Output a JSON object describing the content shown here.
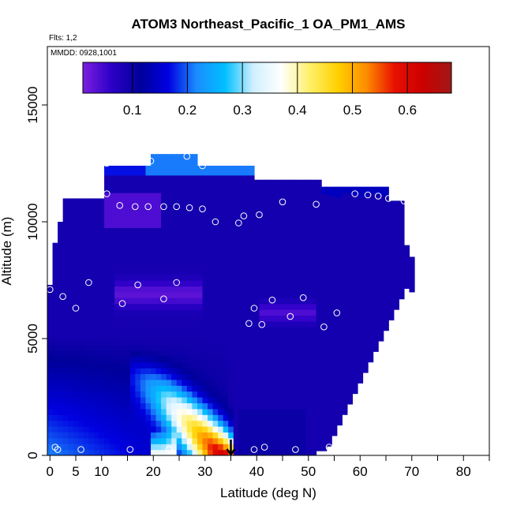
{
  "chart_data": {
    "type": "heatmap",
    "title": "ATOM3 Northeast_Pacific_1 OA_PM1_AMS",
    "annotations": {
      "flights": "Flts: 1,2",
      "dates": "MMDD: 0928,1001"
    },
    "xlabel": "Latitude (deg N)",
    "ylabel": "Altitude (m)",
    "xlim": [
      -0.5,
      85
    ],
    "ylim": [
      0,
      17500
    ],
    "x_ticks": [
      0,
      5,
      10,
      20,
      30,
      40,
      50,
      60,
      70,
      80
    ],
    "y_ticks": [
      0,
      5000,
      10000,
      15000
    ],
    "colorbar": {
      "range": [
        0.01,
        0.68
      ],
      "ticks": [
        "0.1",
        "0.2",
        "0.3",
        "0.4",
        "0.5",
        "0.6"
      ],
      "tick_values": [
        0.1,
        0.2,
        0.3,
        0.4,
        0.5,
        0.6
      ],
      "colors": [
        "#7b1fe0",
        "#2d00c8",
        "#00009a",
        "#0000e0",
        "#1a8cff",
        "#00bfff",
        "#cfefff",
        "#ffffff",
        "#fff06a",
        "#ffd000",
        "#ff8c00",
        "#e81000",
        "#cc0000",
        "#a01818"
      ]
    },
    "arrow_marker_lat": 35,
    "observations": [
      {
        "lat": 0,
        "alt": 7100
      },
      {
        "lat": 1,
        "alt": 350
      },
      {
        "lat": 1.5,
        "alt": 250
      },
      {
        "lat": 2.5,
        "alt": 6800
      },
      {
        "lat": 2.5,
        "alt": 11900
      },
      {
        "lat": 4,
        "alt": 11300
      },
      {
        "lat": 5,
        "alt": 6300
      },
      {
        "lat": 6,
        "alt": 11350
      },
      {
        "lat": 6,
        "alt": 250
      },
      {
        "lat": 7.5,
        "alt": 7400
      },
      {
        "lat": 9,
        "alt": 11350
      },
      {
        "lat": 11,
        "alt": 11200
      },
      {
        "lat": 11,
        "alt": 12500
      },
      {
        "lat": 13.5,
        "alt": 10700
      },
      {
        "lat": 14,
        "alt": 6500
      },
      {
        "lat": 15.5,
        "alt": 250
      },
      {
        "lat": 16.5,
        "alt": 10650
      },
      {
        "lat": 17,
        "alt": 7300
      },
      {
        "lat": 19,
        "alt": 10650
      },
      {
        "lat": 19.5,
        "alt": 12600
      },
      {
        "lat": 22,
        "alt": 6700
      },
      {
        "lat": 22,
        "alt": 10650
      },
      {
        "lat": 23,
        "alt": 250
      },
      {
        "lat": 24.5,
        "alt": 10650
      },
      {
        "lat": 24.5,
        "alt": 7400
      },
      {
        "lat": 26.5,
        "alt": 12800
      },
      {
        "lat": 27,
        "alt": 10600
      },
      {
        "lat": 29.5,
        "alt": 10550
      },
      {
        "lat": 29.5,
        "alt": 12400
      },
      {
        "lat": 32,
        "alt": 10000
      },
      {
        "lat": 36.5,
        "alt": 9950
      },
      {
        "lat": 37.5,
        "alt": 10250
      },
      {
        "lat": 38.5,
        "alt": 5650
      },
      {
        "lat": 39.5,
        "alt": 250
      },
      {
        "lat": 39.5,
        "alt": 6300
      },
      {
        "lat": 40.5,
        "alt": 10300
      },
      {
        "lat": 41,
        "alt": 5600
      },
      {
        "lat": 41.5,
        "alt": 350
      },
      {
        "lat": 43,
        "alt": 6650
      },
      {
        "lat": 45,
        "alt": 10850
      },
      {
        "lat": 46.5,
        "alt": 5950
      },
      {
        "lat": 47.5,
        "alt": 250
      },
      {
        "lat": 49,
        "alt": 6750
      },
      {
        "lat": 51.5,
        "alt": 10750
      },
      {
        "lat": 53,
        "alt": 5500
      },
      {
        "lat": 54,
        "alt": 350
      },
      {
        "lat": 55.5,
        "alt": 6100
      },
      {
        "lat": 59,
        "alt": 11200
      },
      {
        "lat": 61.5,
        "alt": 11150
      },
      {
        "lat": 63.5,
        "alt": 11100
      },
      {
        "lat": 65.5,
        "alt": 11000
      },
      {
        "lat": 68.5,
        "alt": 10900
      },
      {
        "lat": 71,
        "alt": 6200
      }
    ]
  }
}
